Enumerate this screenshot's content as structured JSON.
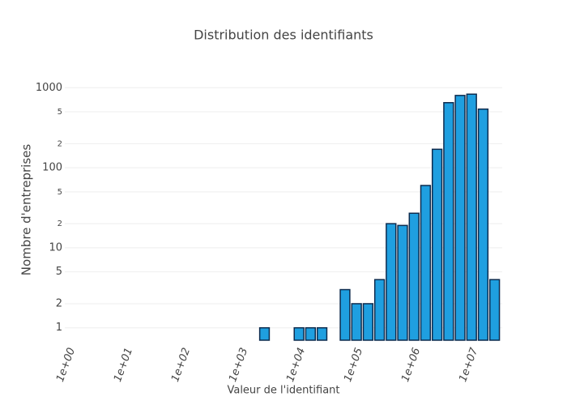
{
  "chart_data": {
    "type": "histogram",
    "title": "Distribution des identifiants",
    "xlabel": "Valeur de l'identifiant",
    "ylabel": "Nombre d'entreprises",
    "bins": [
      1995,
      3162,
      5012,
      7943,
      12589,
      19953,
      31623,
      50119,
      79433,
      125893,
      199526,
      316228,
      501187,
      794328,
      1258925,
      1995262,
      3162278,
      5011872,
      7943282,
      12589254,
      19952623,
      31622777
    ],
    "values": [
      1,
      0,
      0,
      1,
      1,
      1,
      0,
      3,
      2,
      2,
      4,
      20,
      19,
      27,
      60,
      170,
      650,
      800,
      830,
      540,
      4
    ],
    "color": "#1f9fe0",
    "edge_color": "#0d2b4e",
    "xscale": "log",
    "yscale": "log",
    "xlim": [
      0.85,
      34000000
    ],
    "ylim": [
      0.7,
      1300
    ],
    "xticks": [
      {
        "value": 1,
        "label": "1e+00"
      },
      {
        "value": 10,
        "label": "1e+01"
      },
      {
        "value": 100,
        "label": "1e+02"
      },
      {
        "value": 1000,
        "label": "1e+03"
      },
      {
        "value": 10000,
        "label": "1e+04"
      },
      {
        "value": 100000,
        "label": "1e+05"
      },
      {
        "value": 1000000,
        "label": "1e+06"
      },
      {
        "value": 10000000,
        "label": "1e+07"
      }
    ],
    "yticks": [
      1,
      2,
      5,
      10,
      {
        "value": 20,
        "label": "2"
      },
      {
        "value": 50,
        "label": "5"
      },
      100,
      {
        "value": 200,
        "label": "2"
      },
      {
        "value": 500,
        "label": "5"
      },
      1000
    ],
    "grid": true
  }
}
